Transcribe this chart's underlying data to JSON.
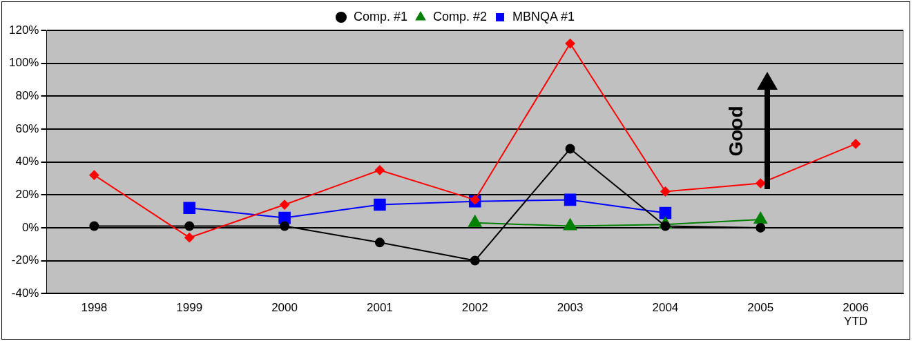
{
  "chart_data": {
    "type": "line",
    "categories": [
      "1998",
      "1999",
      "2000",
      "2001",
      "2002",
      "2003",
      "2004",
      "2005",
      "2006 YTD"
    ],
    "series": [
      {
        "color": "#ff0000",
        "marker": "diamond",
        "values": [
          32,
          -6,
          14,
          35,
          17,
          112,
          22,
          27,
          51
        ]
      },
      {
        "name": "Comp. #1",
        "color": "#000000",
        "marker": "circle",
        "values": [
          1,
          1,
          1,
          -9,
          -20,
          48,
          1,
          0,
          null
        ]
      },
      {
        "name": "Comp. #2",
        "color": "#008000",
        "marker": "triangle",
        "values": [
          null,
          null,
          null,
          null,
          3,
          1,
          2,
          5,
          null
        ]
      },
      {
        "name": "MBNQA #1",
        "color": "#0000ff",
        "marker": "square",
        "values": [
          null,
          12,
          6,
          14,
          16,
          17,
          9,
          null,
          null
        ]
      }
    ],
    "ylim": [
      -40,
      120
    ],
    "yticks": [
      {
        "value": -40,
        "label": "-40%"
      },
      {
        "value": -20,
        "label": "-20%"
      },
      {
        "value": 0,
        "label": "0%"
      },
      {
        "value": 20,
        "label": "20%"
      },
      {
        "value": 40,
        "label": "40%"
      },
      {
        "value": 60,
        "label": "60%"
      },
      {
        "value": 80,
        "label": "80%"
      },
      {
        "value": 100,
        "label": "100%"
      },
      {
        "value": 120,
        "label": "120%"
      }
    ],
    "grid": "y",
    "legend": "top",
    "line_style": "solid",
    "annotations": [
      "Good"
    ]
  }
}
